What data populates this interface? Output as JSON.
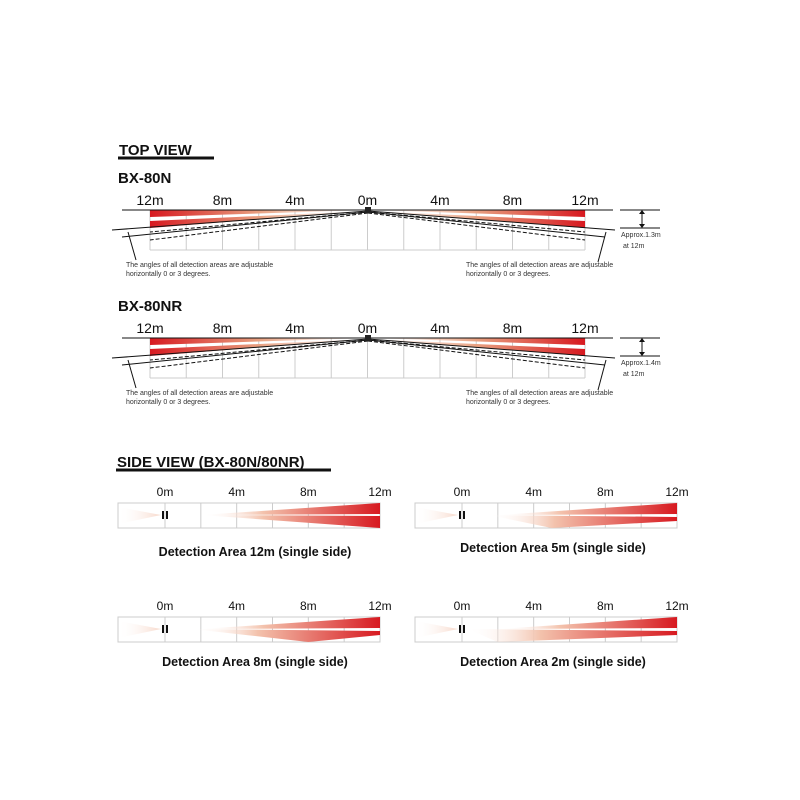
{
  "top_view": {
    "heading": "TOP VIEW",
    "distance_labels": [
      "12m",
      "8m",
      "4m",
      "0m",
      "4m",
      "8m",
      "12m"
    ],
    "models": [
      {
        "name": "BX-80N",
        "approx_line1": "Approx.1.3m",
        "approx_line2": "at 12m",
        "note_left": [
          "The angles of all detection areas are adjustable",
          "horizontally 0 or 3 degrees."
        ],
        "note_right": [
          "The angles of all detection areas are adjustable",
          "horizontally 0 or 3 degrees."
        ]
      },
      {
        "name": "BX-80NR",
        "approx_line1": "Approx.1.4m",
        "approx_line2": "at 12m",
        "note_left": [
          "The angles of all detection areas are adjustable",
          "horizontally 0 or 3 degrees."
        ],
        "note_right": [
          "The angles of all detection areas are adjustable",
          "horizontally 0 or 3 degrees."
        ]
      }
    ]
  },
  "side_view": {
    "heading": "SIDE VIEW (BX-80N/80NR)",
    "distance_labels": [
      "0m",
      "4m",
      "8m",
      "12m"
    ],
    "panels": [
      {
        "caption": "Detection Area 12m (single side)",
        "range_m": 12
      },
      {
        "caption": "Detection Area 5m (single side)",
        "range_m": 5
      },
      {
        "caption": "Detection Area 8m (single side)",
        "range_m": 8
      },
      {
        "caption": "Detection Area 2m (single side)",
        "range_m": 2
      }
    ]
  },
  "colors": {
    "detection_red": "#d71920",
    "detection_light": "#f6d2c4",
    "grid": "#cccccc"
  }
}
